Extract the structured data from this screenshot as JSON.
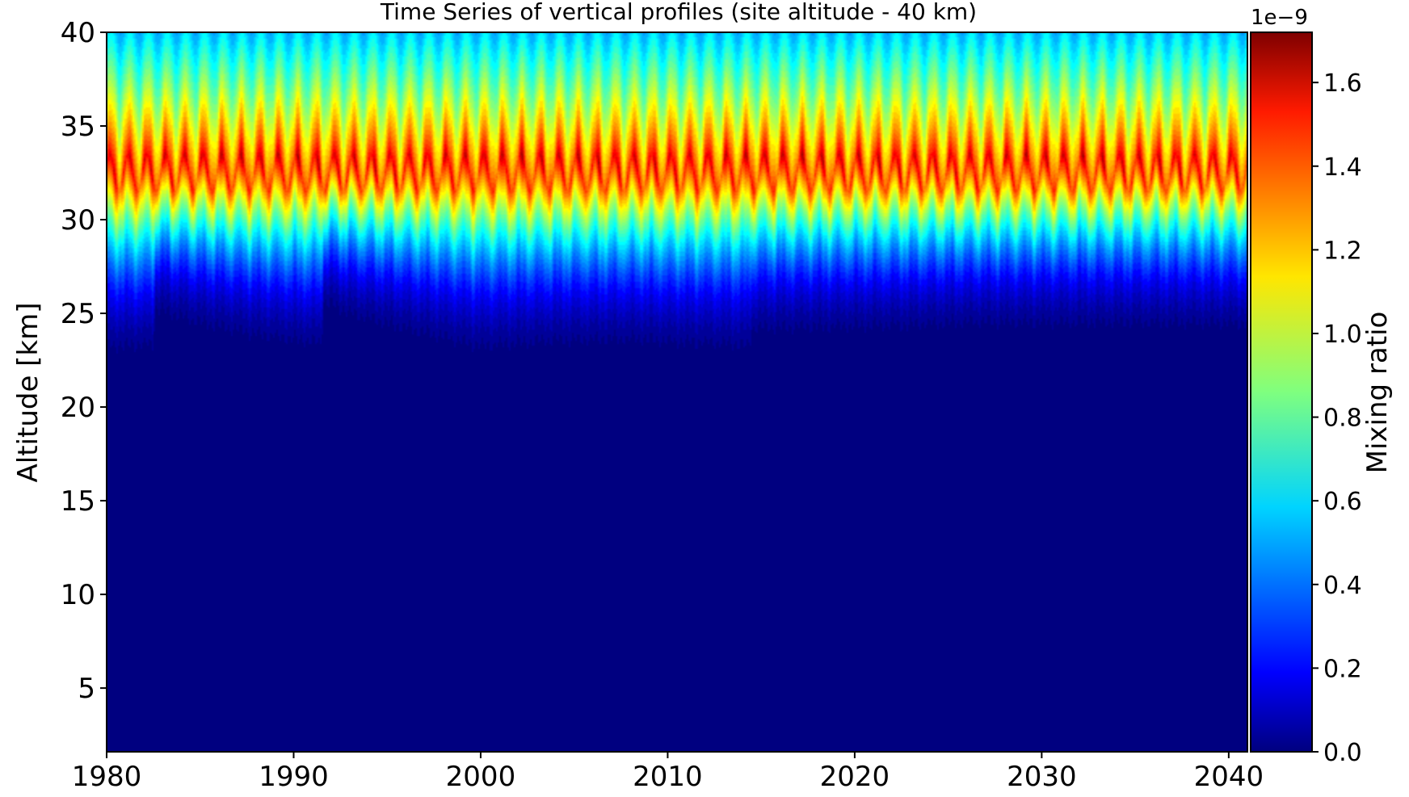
{
  "chart_data": {
    "type": "heatmap",
    "title": "Time Series of vertical profiles (site altitude - 40 km)",
    "xlabel": "",
    "ylabel": "Altitude [km]",
    "xlim": [
      1980,
      2041
    ],
    "ylim": [
      1.6,
      40
    ],
    "xticks": [
      1980,
      1990,
      2000,
      2010,
      2020,
      2030,
      2040
    ],
    "yticks": [
      5,
      10,
      15,
      20,
      25,
      30,
      35,
      40
    ],
    "grid": false,
    "colorscale": "jet",
    "colorbar": {
      "label": "Mixing ratio",
      "offset_text": "1e−9",
      "range": [
        0.0,
        1.72
      ],
      "ticks": [
        "0.0",
        "0.2",
        "0.4",
        "0.6",
        "0.8",
        "1.0",
        "1.2",
        "1.4",
        "1.6"
      ],
      "tick_values": [
        0.0,
        0.2,
        0.4,
        0.6,
        0.8,
        1.0,
        1.2,
        1.4,
        1.6
      ],
      "levels": 40
    },
    "profile_features": {
      "peak_altitude_km": [
        31,
        34
      ],
      "peak_mixing_ratio": [
        1.3,
        1.7
      ],
      "top_of_column_mixing_ratio": [
        0.5,
        0.65
      ],
      "near_zero_below_km": [
        20.8,
        23.0
      ]
    },
    "near_zero_boundary": {
      "year": [
        1980,
        1982.5,
        1982.6,
        1985,
        1988,
        1991.5,
        1991.6,
        1993,
        1996,
        2000,
        2004,
        2008,
        2010,
        2013,
        2014.4,
        2014.5,
        2018,
        2022,
        2026,
        2030,
        2035,
        2041
      ],
      "altitude_km": [
        21.0,
        21.1,
        23.5,
        22.6,
        21.8,
        21.2,
        24.0,
        23.2,
        22.2,
        21.0,
        21.4,
        21.5,
        21.3,
        21.2,
        21.0,
        22.2,
        22.3,
        22.4,
        22.6,
        22.6,
        22.6,
        22.5
      ]
    }
  }
}
